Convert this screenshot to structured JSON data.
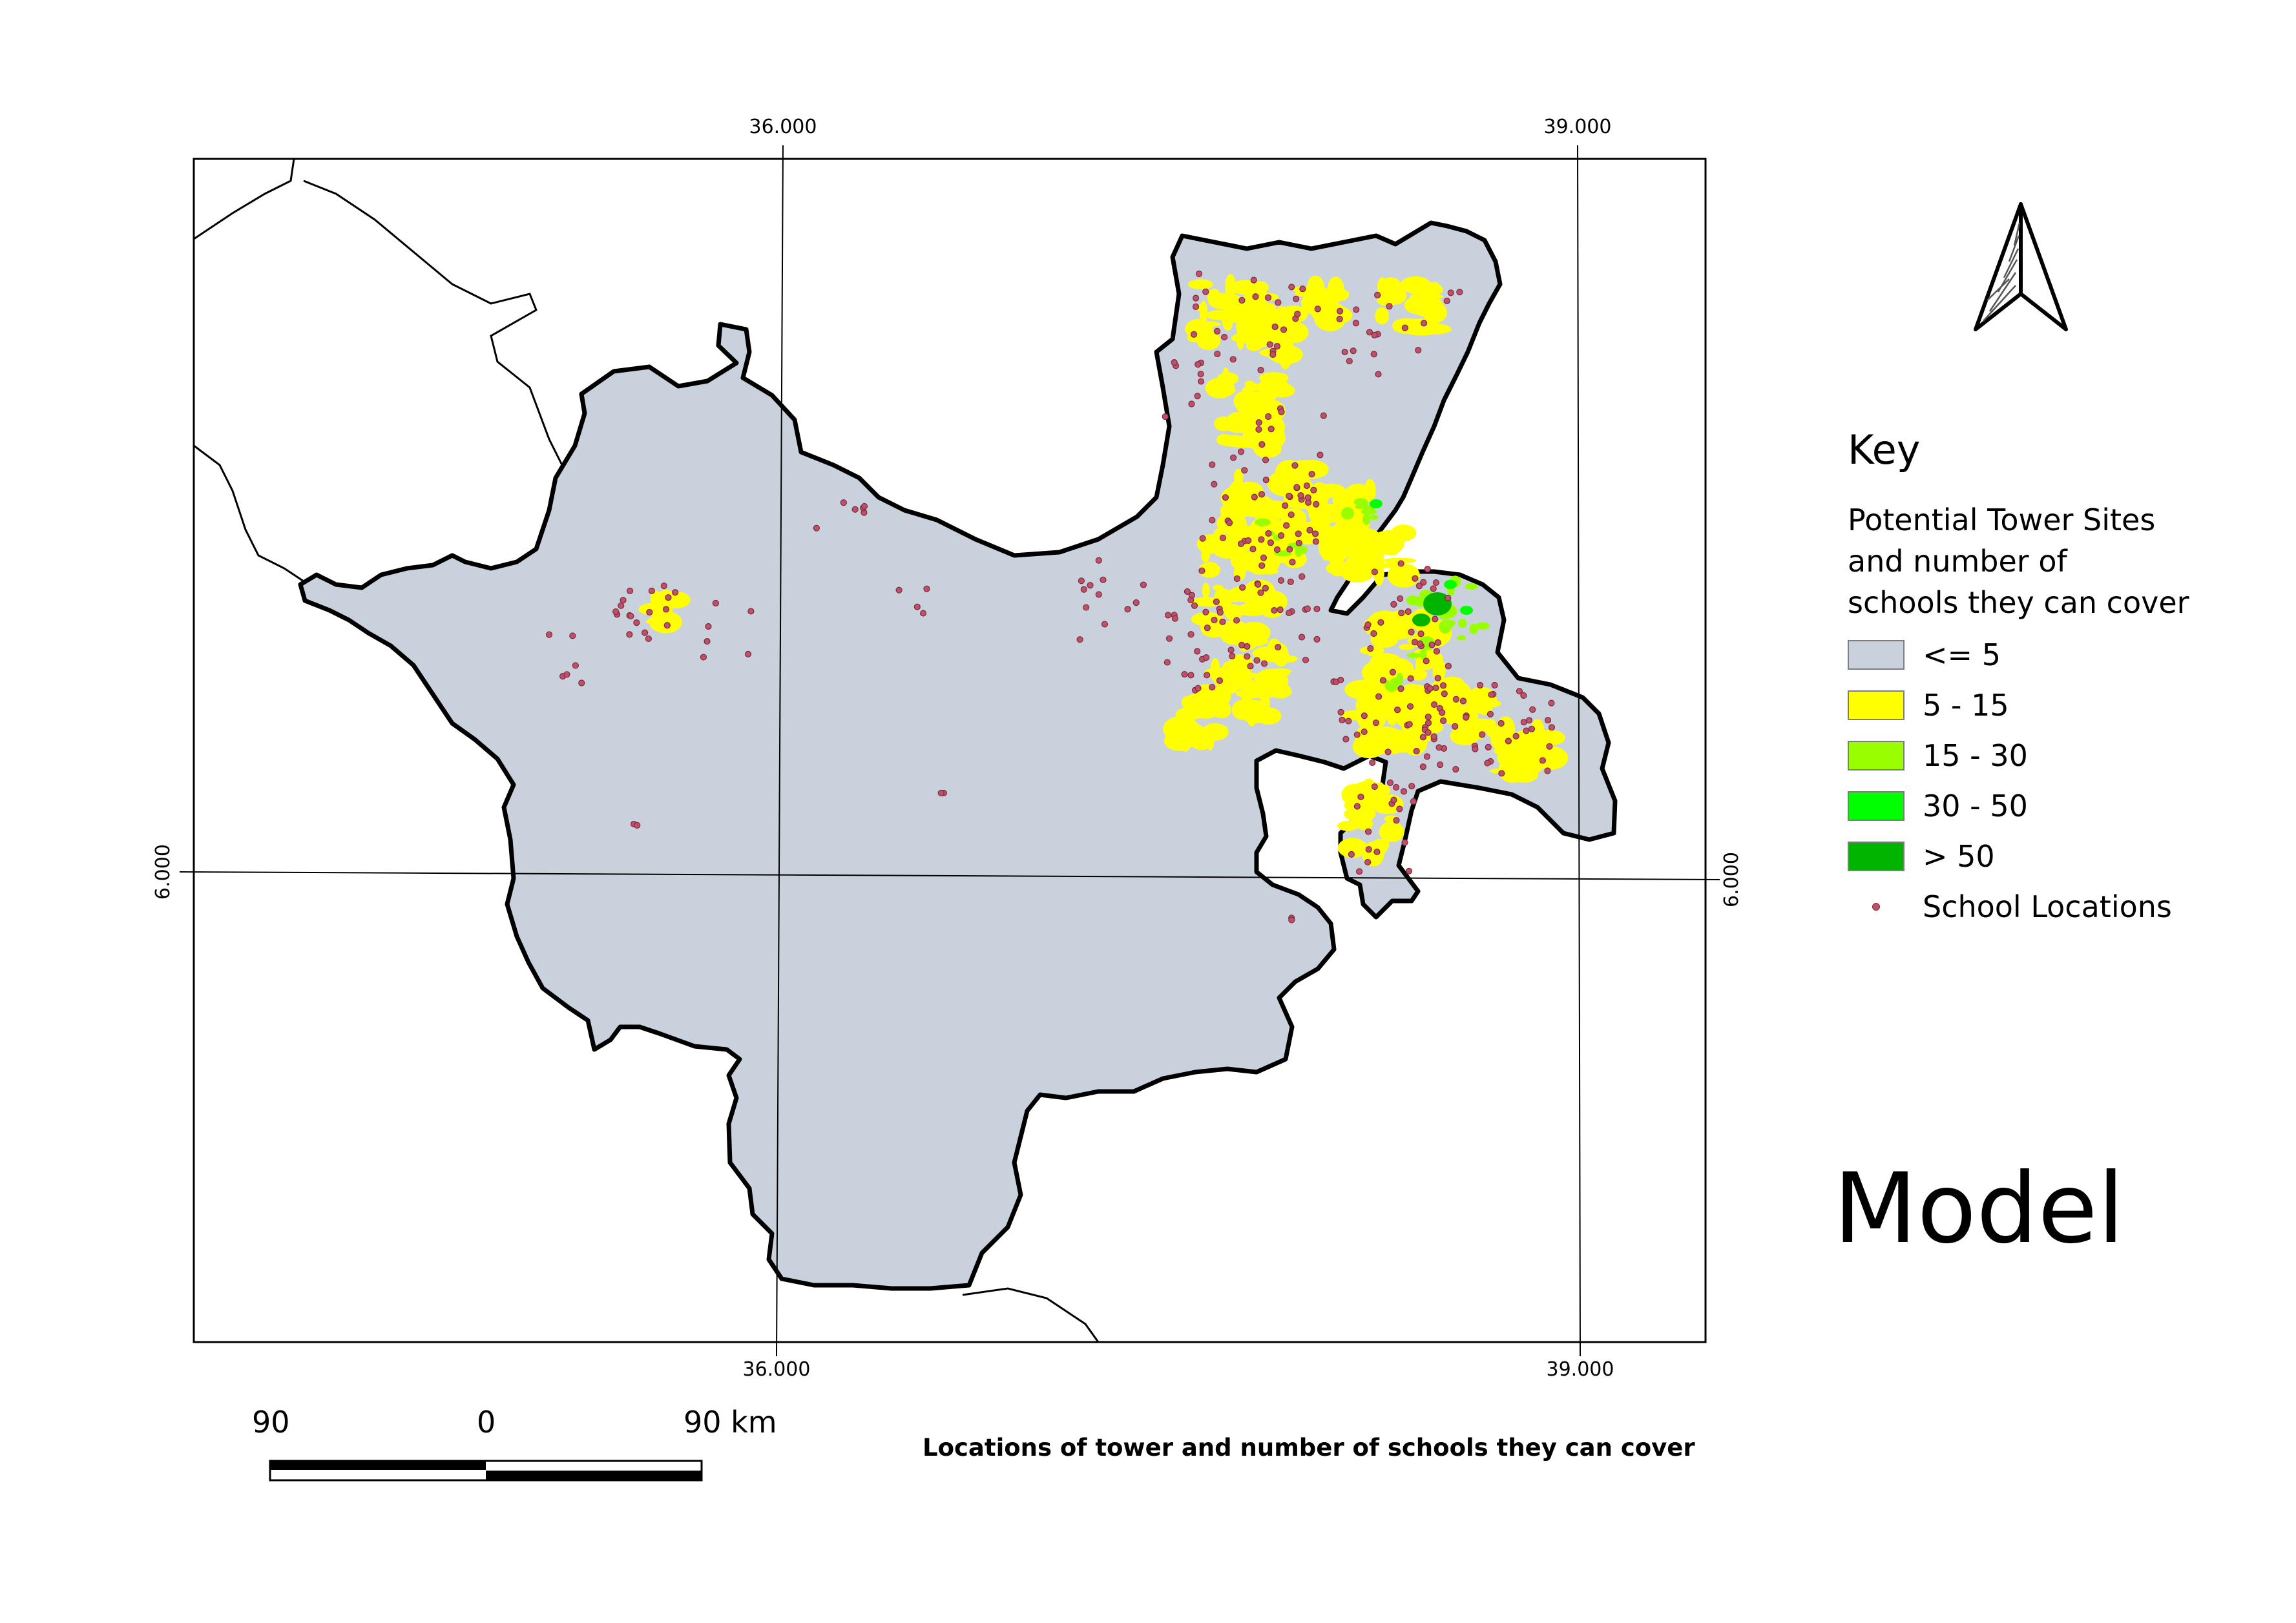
{
  "map": {
    "grid_labels": {
      "top_left": "36.000",
      "top_right": "39.000",
      "bottom_left": "36.000",
      "bottom_right": "39.000",
      "left": "6.000",
      "right": "6.000"
    },
    "colors": {
      "region_fill": "#c9d2dc",
      "class_5_15": "#ffff00",
      "class_15_30": "#99ff00",
      "class_30_50": "#00ff00",
      "class_gt_50": "#00b400",
      "school_point": "#c0506a"
    },
    "north_arrow": "north-arrow-icon"
  },
  "legend": {
    "title": "Key",
    "subtitle_lines": [
      "Potential Tower Sites",
      "and number of",
      "schools they can cover"
    ],
    "items": [
      {
        "label": "<= 5",
        "color": "#c9d2dc"
      },
      {
        "label": "5 - 15",
        "color": "#ffff00"
      },
      {
        "label": "15 - 30",
        "color": "#99ff00"
      },
      {
        "label": "30 - 50",
        "color": "#00ff00"
      },
      {
        "label": "> 50",
        "color": "#00b400"
      }
    ],
    "points_label": "School Locations"
  },
  "model_title": "Model",
  "caption": "Locations of tower and number of schools they can cover",
  "scale_bar": {
    "left": "90",
    "mid": "0",
    "right": "90 km"
  }
}
